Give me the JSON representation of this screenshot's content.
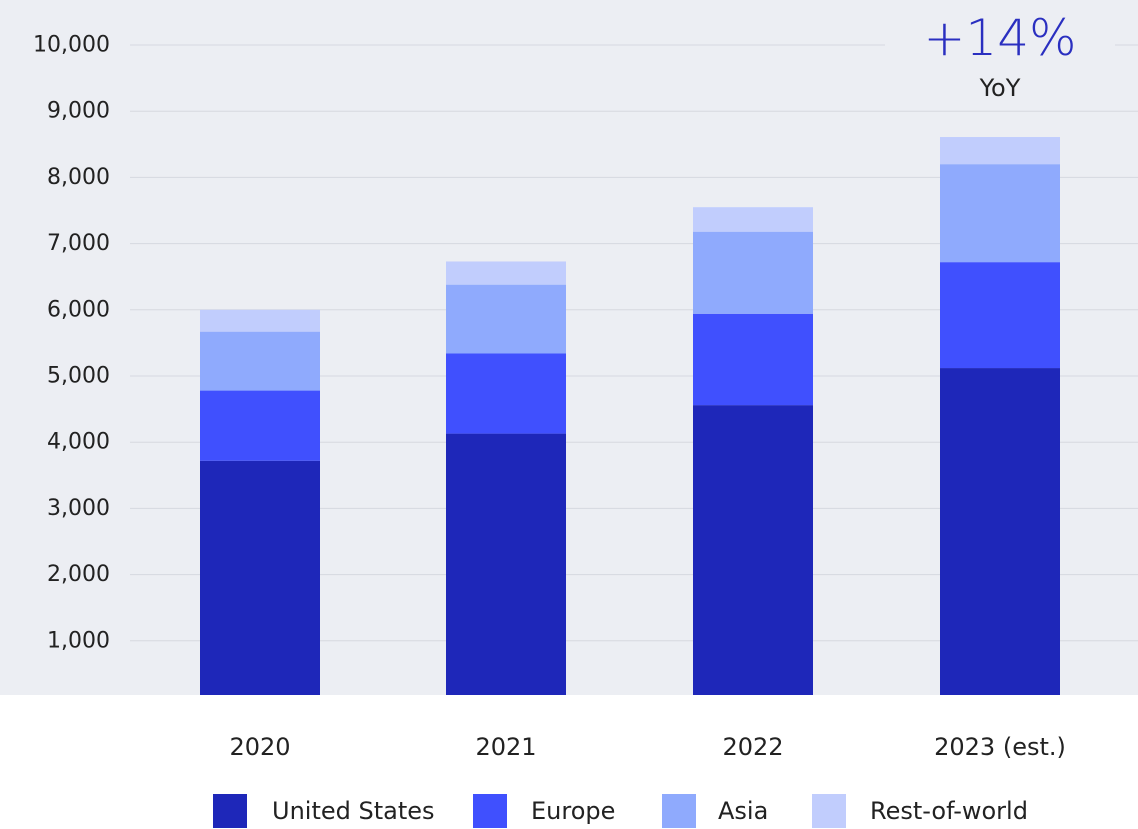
{
  "chart_data": {
    "type": "bar",
    "stacked": true,
    "categories": [
      "2020",
      "2021",
      "2022",
      "2023 (est.)"
    ],
    "series": [
      {
        "name": "United States",
        "color": "#1e27b9",
        "values": [
          3720,
          4130,
          4560,
          5120
        ]
      },
      {
        "name": "Europe",
        "color": "#4050fe",
        "values": [
          1060,
          1210,
          1380,
          1600
        ]
      },
      {
        "name": "Asia",
        "color": "#8faafd",
        "values": [
          890,
          1040,
          1240,
          1480
        ]
      },
      {
        "name": "Rest-of-world",
        "color": "#c1cdfd",
        "values": [
          330,
          350,
          370,
          410
        ]
      }
    ],
    "ylim": [
      0,
      10000
    ],
    "yticks": [
      {
        "value": 1000,
        "label": "1,000"
      },
      {
        "value": 2000,
        "label": "2,000"
      },
      {
        "value": 3000,
        "label": "3,000"
      },
      {
        "value": 4000,
        "label": "4,000"
      },
      {
        "value": 5000,
        "label": "5,000"
      },
      {
        "value": 6000,
        "label": "6,000"
      },
      {
        "value": 7000,
        "label": "7,000"
      },
      {
        "value": 8000,
        "label": "8,000"
      },
      {
        "value": 9000,
        "label": "9,000"
      },
      {
        "value": 10000,
        "label": "10,000"
      }
    ],
    "grid": true,
    "legend_position": "bottom",
    "plot_background": "#eceef3",
    "gridline_color": "#d6d8e0",
    "annotation": {
      "big_text": "+14%",
      "small_text": "YoY",
      "color": "#2a2fc0",
      "category": "2023 (est.)"
    }
  }
}
